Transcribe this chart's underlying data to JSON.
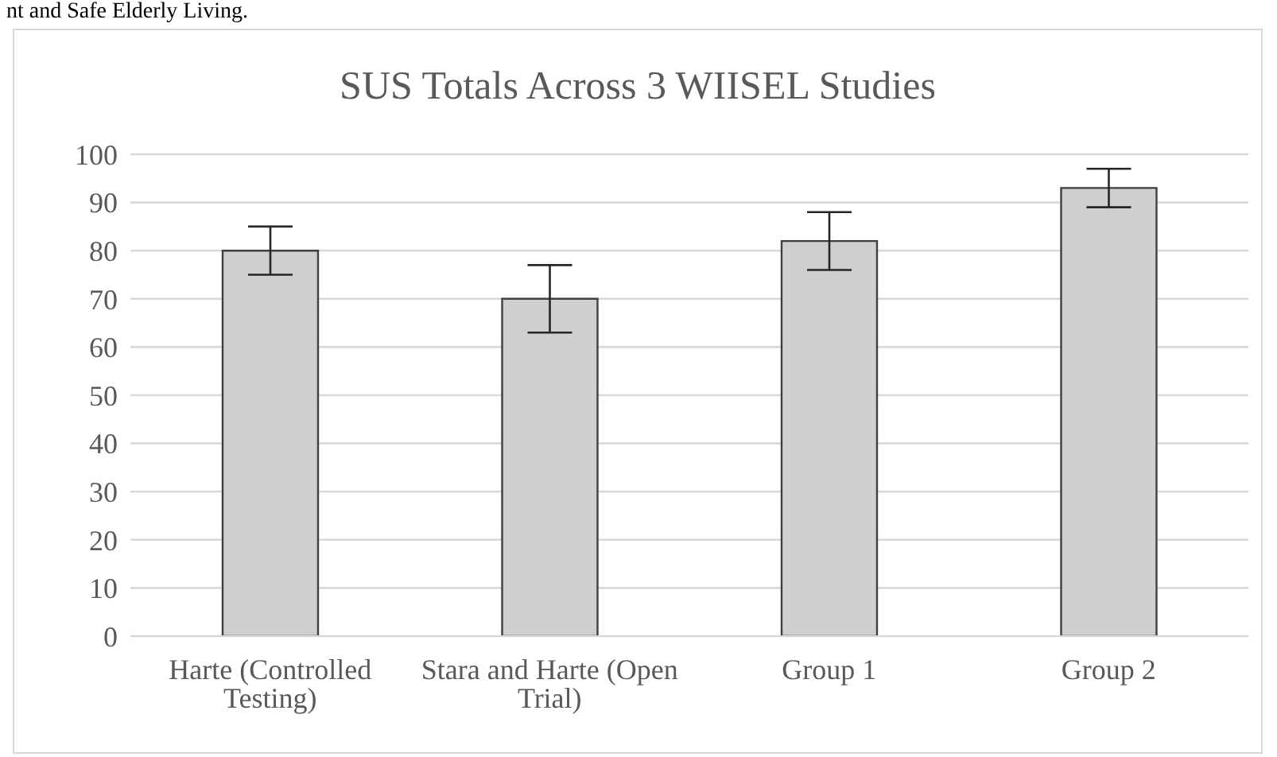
{
  "chart_data": {
    "type": "bar",
    "title": "SUS Totals Across 3 WIISEL Studies",
    "annotations": [
      "nt and Safe Elderly Living."
    ],
    "categories": [
      "Harte (Controlled Testing)",
      "Stara and Harte (Open Trial)",
      "Group 1",
      "Group 2"
    ],
    "values": [
      80,
      70,
      82,
      93
    ],
    "errors": [
      [
        75,
        85
      ],
      [
        63,
        77
      ],
      [
        76,
        88
      ],
      [
        89,
        97
      ]
    ],
    "color": "#d0cece",
    "ylim": [
      0,
      100
    ],
    "yticks": [
      0,
      10,
      20,
      30,
      40,
      50,
      60,
      70,
      80,
      90,
      100
    ],
    "grid": "y"
  }
}
